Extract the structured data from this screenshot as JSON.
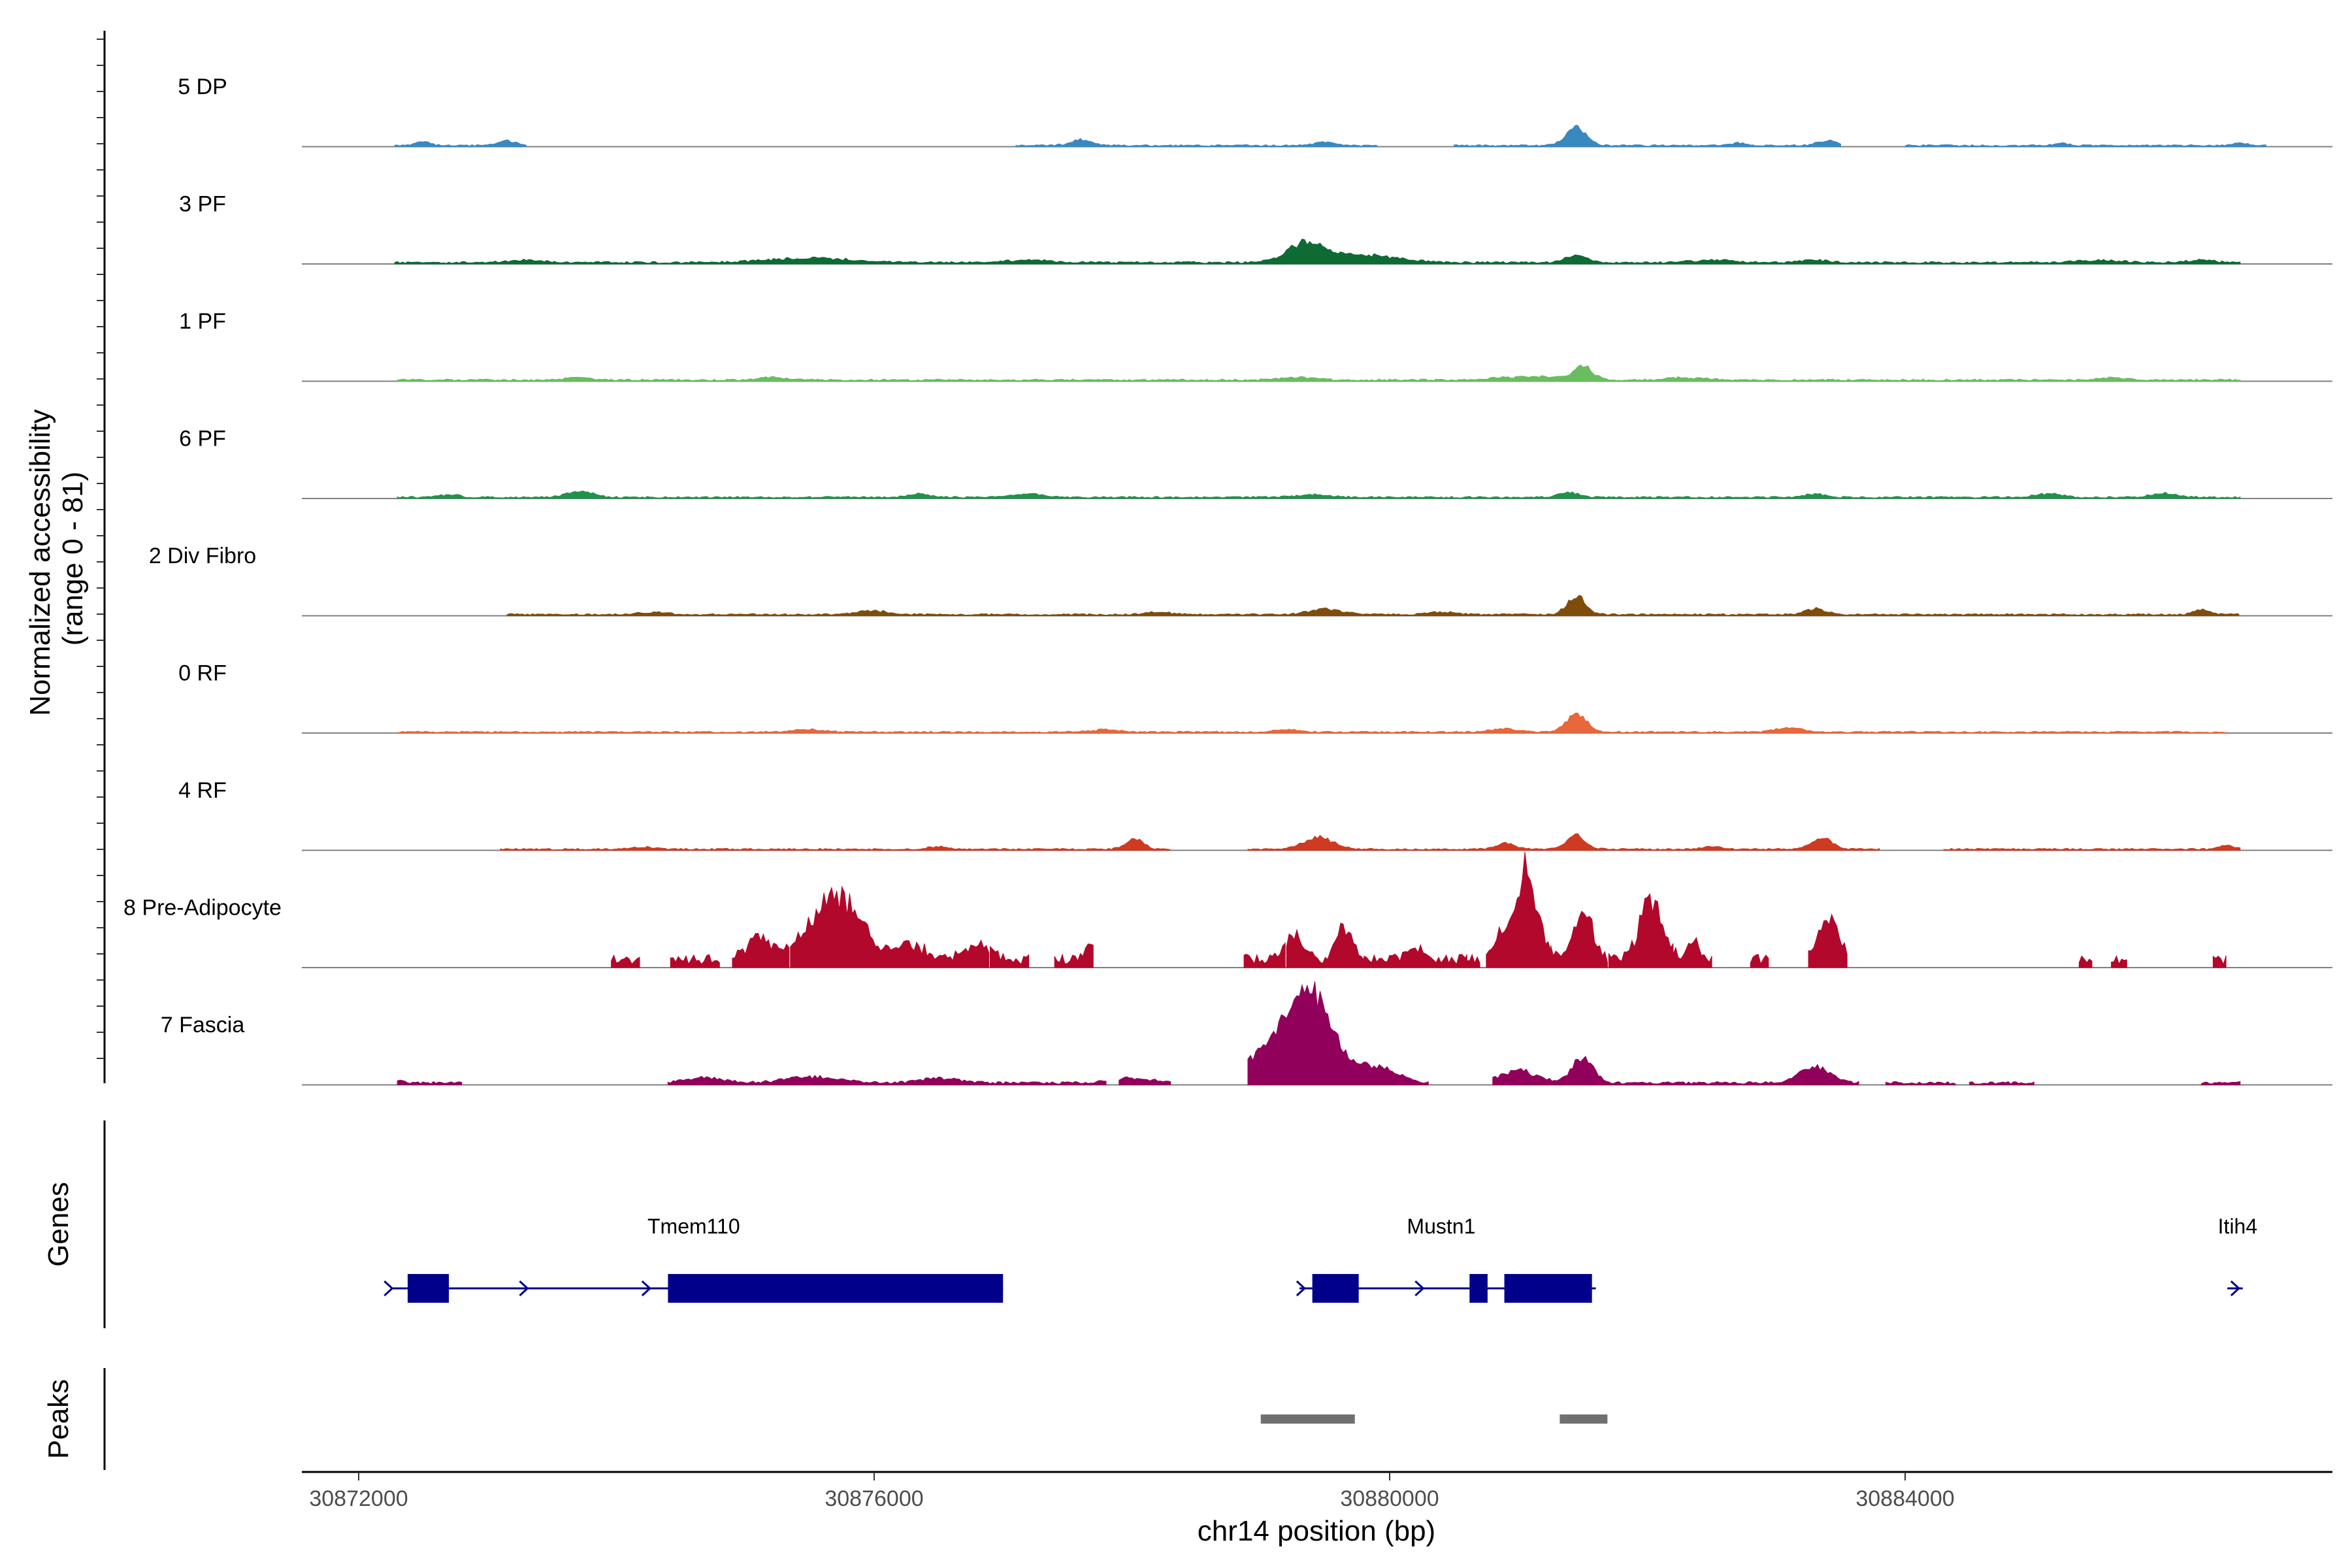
{
  "chart_data": {
    "type": "area",
    "xlabel": "chr14 position (bp)",
    "ylabel": "Normalized accessibility\n(range 0 - 81)",
    "yrange": [
      0,
      81
    ],
    "xlim": [
      30871560,
      30887240
    ],
    "xticks": [
      30872000,
      30876000,
      30880000,
      30884000
    ],
    "xtick_labels": [
      "30872000",
      "30876000",
      "30880000",
      "30884000"
    ],
    "tracks": [
      {
        "name": "5 DP",
        "color": "#3a88c0",
        "peaks": [
          [
            30872500,
            3,
            60
          ],
          [
            30873150,
            4,
            70
          ],
          [
            30877600,
            5,
            80
          ],
          [
            30879500,
            3,
            80
          ],
          [
            30881450,
            14,
            80
          ],
          [
            30883400,
            4,
            80
          ],
          [
            30882700,
            2,
            60
          ],
          [
            30885200,
            2,
            60
          ],
          [
            30886600,
            2,
            60
          ]
        ],
        "segments": [
          [
            30872280,
            30873300
          ],
          [
            30877100,
            30879900
          ],
          [
            30880500,
            30883500
          ],
          [
            30884000,
            30886800
          ]
        ],
        "base": 1.2
      },
      {
        "name": "3 PF",
        "color": "#0d6b33",
        "peaks": [
          [
            30879350,
            16,
            140
          ],
          [
            30879800,
            6,
            260
          ],
          [
            30875500,
            4,
            300
          ],
          [
            30881450,
            6,
            80
          ],
          [
            30873300,
            2,
            150
          ],
          [
            30877200,
            2,
            150
          ],
          [
            30882500,
            2,
            150
          ],
          [
            30883300,
            2,
            100
          ],
          [
            30885500,
            2,
            150
          ],
          [
            30886300,
            2,
            100
          ]
        ],
        "segments": [
          [
            30872280,
            30886600
          ]
        ],
        "base": 1.5
      },
      {
        "name": "1 PF",
        "color": "#6abd5f",
        "peaks": [
          [
            30881500,
            12,
            70
          ],
          [
            30881100,
            3,
            250
          ],
          [
            30873700,
            2,
            100
          ],
          [
            30875200,
            2,
            100
          ],
          [
            30879300,
            2,
            150
          ],
          [
            30882300,
            2,
            150
          ],
          [
            30885600,
            2,
            100
          ]
        ],
        "segments": [
          [
            30872300,
            30886600
          ]
        ],
        "base": 1.3
      },
      {
        "name": "6 PF",
        "color": "#21924a",
        "peaks": [
          [
            30873720,
            5,
            100
          ],
          [
            30876350,
            3,
            80
          ],
          [
            30877200,
            3,
            100
          ],
          [
            30881400,
            4,
            80
          ],
          [
            30883300,
            3,
            70
          ],
          [
            30885100,
            3,
            100
          ],
          [
            30886000,
            3,
            100
          ],
          [
            30872700,
            2,
            80
          ],
          [
            30879400,
            2,
            150
          ]
        ],
        "segments": [
          [
            30872300,
            30886600
          ]
        ],
        "base": 1.3
      },
      {
        "name": "2 Div Fibro",
        "color": "#7f4d0b",
        "peaks": [
          [
            30881450,
            16,
            70
          ],
          [
            30879500,
            5,
            120
          ],
          [
            30883300,
            5,
            80
          ],
          [
            30886300,
            4,
            60
          ],
          [
            30874300,
            2,
            120
          ],
          [
            30876000,
            3,
            120
          ],
          [
            30878200,
            2,
            100
          ],
          [
            30880400,
            2,
            100
          ]
        ],
        "segments": [
          [
            30873150,
            30886600
          ]
        ],
        "base": 1.3
      },
      {
        "name": "0 RF",
        "color": "#e8673b",
        "peaks": [
          [
            30881450,
            14,
            80
          ],
          [
            30883100,
            4,
            100
          ],
          [
            30880900,
            3,
            100
          ],
          [
            30875500,
            2,
            120
          ],
          [
            30877800,
            2,
            100
          ],
          [
            30879200,
            2,
            100
          ]
        ],
        "segments": [
          [
            30872300,
            30886500
          ]
        ],
        "base": 1.1
      },
      {
        "name": "4 RF",
        "color": "#ce3b22",
        "peaks": [
          [
            30878020,
            8,
            70
          ],
          [
            30879450,
            10,
            110
          ],
          [
            30881450,
            12,
            70
          ],
          [
            30883350,
            10,
            80
          ],
          [
            30880900,
            5,
            70
          ],
          [
            30874200,
            2,
            80
          ],
          [
            30876500,
            2,
            80
          ],
          [
            30882500,
            2,
            80
          ],
          [
            30886500,
            3,
            60
          ]
        ],
        "segments": [
          [
            30873100,
            30878300
          ],
          [
            30878900,
            30883800
          ],
          [
            30884300,
            30886600
          ]
        ],
        "base": 1.2
      },
      {
        "name": "8 Pre-Adipocyte",
        "color": "#b2082b",
        "peaks": [
          [
            30875700,
            52,
            200
          ],
          [
            30875100,
            18,
            90
          ],
          [
            30876300,
            12,
            100
          ],
          [
            30876800,
            14,
            100
          ],
          [
            30877680,
            10,
            60
          ],
          [
            30879260,
            20,
            70
          ],
          [
            30879650,
            28,
            60
          ],
          [
            30881060,
            74,
            90
          ],
          [
            30881500,
            46,
            70
          ],
          [
            30882030,
            49,
            90
          ],
          [
            30882350,
            15,
            50
          ],
          [
            30883400,
            34,
            80
          ],
          [
            30880200,
            10,
            60
          ],
          [
            30880850,
            18,
            50
          ]
        ],
        "segments": [
          [
            30873960,
            30874180
          ],
          [
            30874420,
            30874800
          ],
          [
            30874900,
            30875350
          ],
          [
            30875350,
            30876900
          ],
          [
            30876900,
            30877200
          ],
          [
            30877400,
            30877700
          ],
          [
            30878870,
            30879200
          ],
          [
            30879200,
            30879800
          ],
          [
            30879800,
            30880600
          ],
          [
            30880400,
            30880700
          ],
          [
            30880750,
            30881250
          ],
          [
            30881250,
            30881700
          ],
          [
            30881700,
            30882200
          ],
          [
            30882200,
            30882500
          ],
          [
            30882800,
            30882950
          ],
          [
            30883250,
            30883550
          ],
          [
            30885350,
            30885450
          ],
          [
            30885600,
            30885720
          ],
          [
            30886390,
            30886500
          ]
        ],
        "base": 8.0
      },
      {
        "name": "7 Fascia",
        "color": "#91005a",
        "peaks": [
          [
            30879380,
            56,
            160
          ],
          [
            30879200,
            30,
            300
          ],
          [
            30879900,
            12,
            150
          ],
          [
            30881500,
            22,
            80
          ],
          [
            30881000,
            10,
            150
          ],
          [
            30883300,
            14,
            120
          ],
          [
            30875500,
            5,
            200
          ],
          [
            30874700,
            4,
            150
          ],
          [
            30876500,
            4,
            150
          ],
          [
            30878000,
            4,
            150
          ],
          [
            30872300,
            2,
            60
          ]
        ],
        "segments": [
          [
            30872300,
            30872800
          ],
          [
            30874400,
            30877800
          ],
          [
            30877900,
            30878300
          ],
          [
            30878900,
            30880300
          ],
          [
            30880800,
            30883650
          ],
          [
            30883850,
            30884400
          ],
          [
            30884500,
            30885000
          ],
          [
            30886300,
            30886600
          ]
        ],
        "base": 2.0
      }
    ],
    "genes": [
      {
        "name": "Tmem110",
        "start": 30872250,
        "end": 30877000,
        "label_x": 30874600,
        "strand": "+",
        "exons": [
          [
            30872380,
            30872700
          ],
          [
            30874400,
            30877000
          ]
        ],
        "arrows": [
          30872250,
          30873300,
          30874250
        ]
      },
      {
        "name": "Mustn1",
        "start": 30879300,
        "end": 30881600,
        "label_x": 30880400,
        "strand": "+",
        "exons": [
          [
            30879400,
            30879760
          ],
          [
            30880620,
            30880760
          ],
          [
            30880890,
            30881570
          ]
        ],
        "arrows": [
          30879330,
          30880250
        ]
      },
      {
        "name": "Itih4",
        "start": 30886500,
        "end": 30886620,
        "label_x": 30886580,
        "strand": "+",
        "exons": [],
        "arrows": [
          30886580
        ]
      }
    ],
    "gene_color": "#00008b",
    "peaks_regions": [
      [
        30879000,
        30879730
      ],
      [
        30881320,
        30881690
      ]
    ],
    "peak_color": "#707070",
    "panel_titles": {
      "genes": "Genes",
      "peaks": "Peaks"
    }
  }
}
